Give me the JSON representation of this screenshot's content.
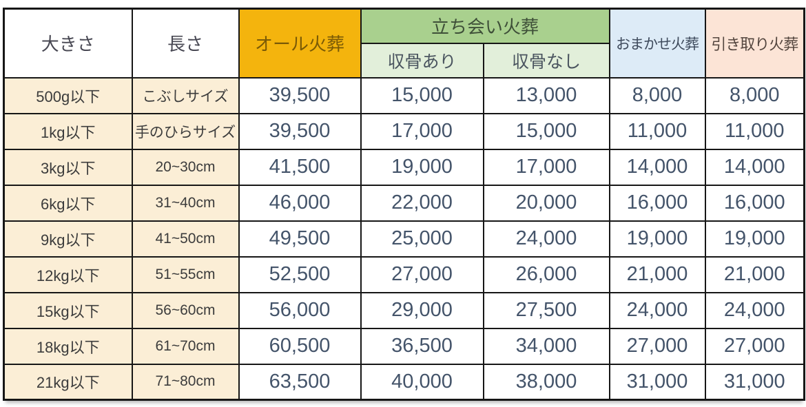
{
  "header": {
    "size": "大きさ",
    "length": "長さ",
    "all_cremation": "オール火葬",
    "attended_cremation": "立ち会い火葬",
    "bones_collected": "収骨あり",
    "bones_not_collected": "収骨なし",
    "omakase_cremation": "おまかせ火葬",
    "pickup_cremation": "引き取り火葬"
  },
  "rows": [
    {
      "size": "500g以下",
      "length": "こぶしサイズ",
      "all": "39,500",
      "attended_with": "15,000",
      "attended_without": "13,000",
      "omakase": "8,000",
      "pickup": "8,000"
    },
    {
      "size": "1kg以下",
      "length": "手のひらサイズ",
      "all": "39,500",
      "attended_with": "17,000",
      "attended_without": "15,000",
      "omakase": "11,000",
      "pickup": "11,000"
    },
    {
      "size": "3kg以下",
      "length": "20~30cm",
      "all": "41,500",
      "attended_with": "19,000",
      "attended_without": "17,000",
      "omakase": "14,000",
      "pickup": "14,000"
    },
    {
      "size": "6kg以下",
      "length": "31~40cm",
      "all": "46,000",
      "attended_with": "22,000",
      "attended_without": "20,000",
      "omakase": "16,000",
      "pickup": "16,000"
    },
    {
      "size": "9kg以下",
      "length": "41~50cm",
      "all": "49,500",
      "attended_with": "25,000",
      "attended_without": "24,000",
      "omakase": "19,000",
      "pickup": "19,000"
    },
    {
      "size": "12kg以下",
      "length": "51~55cm",
      "all": "52,500",
      "attended_with": "27,000",
      "attended_without": "26,000",
      "omakase": "21,000",
      "pickup": "21,000"
    },
    {
      "size": "15kg以下",
      "length": "56~60cm",
      "all": "56,000",
      "attended_with": "29,000",
      "attended_without": "27,500",
      "omakase": "24,000",
      "pickup": "24,000"
    },
    {
      "size": "18kg以下",
      "length": "61~70cm",
      "all": "60,500",
      "attended_with": "36,500",
      "attended_without": "34,000",
      "omakase": "27,000",
      "pickup": "27,000"
    },
    {
      "size": "21kg以下",
      "length": "71~80cm",
      "all": "63,500",
      "attended_with": "40,000",
      "attended_without": "38,000",
      "omakase": "31,000",
      "pickup": "31,000"
    }
  ],
  "colors": {
    "all_header_bg": "#F4B40D",
    "attended_header_bg": "#A9D08E",
    "attended_sub_bg": "#E2EFDA",
    "omakase_header_bg": "#DDEBF7",
    "pickup_header_bg": "#FCE4D6",
    "row_label_bg": "#FBEED6",
    "number_text": "#44546A",
    "border": "#161616"
  },
  "chart_data": {
    "type": "table",
    "columns": [
      "大きさ",
      "長さ",
      "オール火葬",
      "立ち会い火葬 収骨あり",
      "立ち会い火葬 収骨なし",
      "おまかせ火葬",
      "引き取り火葬"
    ],
    "rows": [
      [
        "500g以下",
        "こぶしサイズ",
        39500,
        15000,
        13000,
        8000,
        8000
      ],
      [
        "1kg以下",
        "手のひらサイズ",
        39500,
        17000,
        15000,
        11000,
        11000
      ],
      [
        "3kg以下",
        "20~30cm",
        41500,
        19000,
        17000,
        14000,
        14000
      ],
      [
        "6kg以下",
        "31~40cm",
        46000,
        22000,
        20000,
        16000,
        16000
      ],
      [
        "9kg以下",
        "41~50cm",
        49500,
        25000,
        24000,
        19000,
        19000
      ],
      [
        "12kg以下",
        "51~55cm",
        52500,
        27000,
        26000,
        21000,
        21000
      ],
      [
        "15kg以下",
        "56~60cm",
        56000,
        29000,
        27500,
        24000,
        24000
      ],
      [
        "18kg以下",
        "61~70cm",
        60500,
        36500,
        34000,
        27000,
        27000
      ],
      [
        "21kg以下",
        "71~80cm",
        63500,
        40000,
        38000,
        31000,
        31000
      ]
    ]
  }
}
